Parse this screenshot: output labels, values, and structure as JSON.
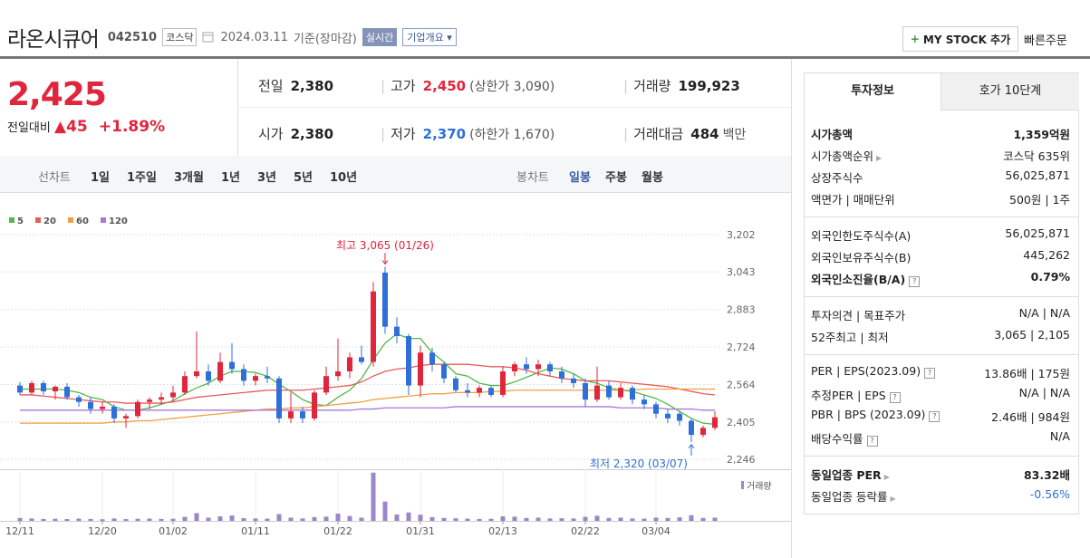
{
  "header": {
    "title": "라온시큐어",
    "code": "042510",
    "market": "코스닥",
    "date": "2024.03.11",
    "basis": "기준(장마감)",
    "realtime": "실시간",
    "overview": "기업개요",
    "my_stock": "MY STOCK 추가",
    "quick_order": "빠른주문"
  },
  "price": {
    "current": "2,425",
    "change_label": "전일대비",
    "change": "45",
    "rate": "+1.89%"
  },
  "quotes": [
    {
      "label": "전일",
      "value": "2,380"
    },
    {
      "label": "고가",
      "value": "2,450",
      "extra": "(상한가 3,090)"
    },
    {
      "label": "거래량",
      "value": "199,923"
    },
    {
      "label": "시가",
      "value": "2,380"
    },
    {
      "label": "저가",
      "value": "2,370",
      "extra": "(하한가 1,670)"
    },
    {
      "label": "거래대금",
      "value": "484",
      "extra": "백만"
    }
  ],
  "periods": {
    "line_label": "선차트",
    "line_items": [
      "1일",
      "1주일",
      "3개월",
      "1년",
      "3년",
      "5년",
      "10년"
    ],
    "candle_label": "봉차트",
    "candle_items": [
      "일봉",
      "주봉",
      "월봉"
    ]
  },
  "chart_data": {
    "type": "candlestick",
    "categories": [
      "12/11",
      null,
      null,
      null,
      null,
      null,
      null,
      "12/20",
      null,
      null,
      null,
      null,
      null,
      "01/02",
      null,
      null,
      null,
      null,
      null,
      null,
      "01/11",
      null,
      null,
      null,
      null,
      null,
      null,
      "01/22",
      null,
      null,
      null,
      null,
      null,
      null,
      "01/31",
      null,
      null,
      null,
      null,
      null,
      null,
      "02/13",
      null,
      null,
      null,
      null,
      null,
      null,
      "02/22",
      null,
      null,
      null,
      null,
      null,
      "03/04",
      null,
      null,
      null,
      null,
      null
    ],
    "open": [
      2560,
      2530,
      2570,
      2535,
      2555,
      2510,
      2490,
      2460,
      2470,
      2420,
      2430,
      2490,
      2500,
      2510,
      2530,
      2600,
      2620,
      2580,
      2660,
      2630,
      2580,
      2600,
      2590,
      2420,
      2450,
      2420,
      2530,
      2600,
      2620,
      2680,
      2660,
      3040,
      2810,
      2770,
      2560,
      2700,
      2650,
      2590,
      2540,
      2530,
      2550,
      2520,
      2620,
      2650,
      2630,
      2650,
      2620,
      2590,
      2570,
      2500,
      2560,
      2510,
      2550,
      2500,
      2480,
      2440,
      2440,
      2410,
      2350,
      2380
    ],
    "high": [
      2575,
      2580,
      2580,
      2560,
      2570,
      2520,
      2510,
      2490,
      2480,
      2440,
      2500,
      2510,
      2530,
      2560,
      2620,
      2790,
      2650,
      2700,
      2740,
      2650,
      2610,
      2640,
      2600,
      2530,
      2470,
      2540,
      2640,
      2760,
      2700,
      2730,
      3000,
      3065,
      2850,
      2780,
      2730,
      2720,
      2660,
      2600,
      2570,
      2560,
      2560,
      2640,
      2660,
      2680,
      2670,
      2660,
      2640,
      2610,
      2590,
      2640,
      2580,
      2570,
      2560,
      2520,
      2490,
      2460,
      2450,
      2420,
      2390,
      2450
    ],
    "low": [
      2520,
      2520,
      2520,
      2500,
      2500,
      2470,
      2440,
      2440,
      2400,
      2380,
      2420,
      2460,
      2480,
      2490,
      2520,
      2590,
      2560,
      2570,
      2610,
      2560,
      2560,
      2570,
      2400,
      2400,
      2400,
      2410,
      2520,
      2580,
      2590,
      2650,
      2640,
      2780,
      2740,
      2520,
      2510,
      2620,
      2570,
      2530,
      2510,
      2510,
      2510,
      2510,
      2600,
      2610,
      2600,
      2600,
      2570,
      2550,
      2470,
      2490,
      2500,
      2500,
      2480,
      2460,
      2420,
      2400,
      2390,
      2320,
      2340,
      2370
    ],
    "close": [
      2530,
      2570,
      2535,
      2555,
      2510,
      2490,
      2460,
      2470,
      2420,
      2430,
      2490,
      2500,
      2510,
      2530,
      2600,
      2620,
      2580,
      2660,
      2630,
      2580,
      2600,
      2590,
      2420,
      2450,
      2420,
      2530,
      2600,
      2620,
      2680,
      2660,
      2960,
      2810,
      2770,
      2560,
      2700,
      2650,
      2590,
      2540,
      2530,
      2550,
      2520,
      2620,
      2650,
      2630,
      2650,
      2620,
      2590,
      2570,
      2500,
      2560,
      2510,
      2550,
      2500,
      2480,
      2440,
      2420,
      2410,
      2350,
      2380,
      2425
    ],
    "up_color": "#e0263c",
    "down_color": "#2f6fd8",
    "series": [
      {
        "name": "5",
        "color": "#52b848",
        "values": [
          2545,
          2545,
          2545,
          2545,
          2540,
          2530,
          2510,
          2500,
          2470,
          2455,
          2455,
          2465,
          2480,
          2495,
          2525,
          2550,
          2570,
          2600,
          2620,
          2620,
          2615,
          2600,
          2565,
          2535,
          2500,
          2480,
          2475,
          2510,
          2540,
          2590,
          2670,
          2740,
          2780,
          2760,
          2760,
          2700,
          2660,
          2610,
          2600,
          2570,
          2560,
          2560,
          2575,
          2595,
          2615,
          2635,
          2630,
          2610,
          2580,
          2570,
          2550,
          2540,
          2535,
          2520,
          2505,
          2480,
          2450,
          2420,
          2400,
          2395
        ]
      },
      {
        "name": "20",
        "color": "#e85a5a",
        "values": [
          2520,
          2520,
          2515,
          2510,
          2505,
          2500,
          2495,
          2490,
          2490,
          2485,
          2485,
          2485,
          2485,
          2490,
          2500,
          2510,
          2515,
          2520,
          2525,
          2530,
          2535,
          2540,
          2540,
          2540,
          2540,
          2545,
          2550,
          2555,
          2560,
          2575,
          2600,
          2620,
          2630,
          2635,
          2645,
          2650,
          2650,
          2650,
          2650,
          2645,
          2640,
          2640,
          2635,
          2625,
          2610,
          2600,
          2590,
          2585,
          2580,
          2580,
          2580,
          2575,
          2570,
          2565,
          2560,
          2555,
          2545,
          2535,
          2525,
          2520
        ]
      },
      {
        "name": "60",
        "color": "#f0a040",
        "values": [
          2400,
          2400,
          2400,
          2400,
          2400,
          2400,
          2400,
          2400,
          2405,
          2405,
          2410,
          2410,
          2415,
          2420,
          2425,
          2430,
          2435,
          2440,
          2445,
          2450,
          2455,
          2460,
          2460,
          2465,
          2465,
          2470,
          2475,
          2480,
          2485,
          2490,
          2500,
          2505,
          2510,
          2515,
          2520,
          2525,
          2525,
          2530,
          2530,
          2530,
          2535,
          2535,
          2540,
          2540,
          2540,
          2540,
          2540,
          2540,
          2540,
          2540,
          2540,
          2540,
          2540,
          2545,
          2545,
          2545,
          2545,
          2545,
          2545,
          2545
        ]
      },
      {
        "name": "120",
        "color": "#a678d8",
        "values": [
          2455,
          2455,
          2455,
          2455,
          2455,
          2455,
          2455,
          2455,
          2455,
          2455,
          2455,
          2455,
          2455,
          2455,
          2455,
          2455,
          2455,
          2455,
          2455,
          2455,
          2455,
          2455,
          2455,
          2455,
          2455,
          2455,
          2455,
          2455,
          2455,
          2460,
          2460,
          2465,
          2465,
          2465,
          2465,
          2465,
          2465,
          2470,
          2470,
          2470,
          2470,
          2470,
          2470,
          2470,
          2470,
          2470,
          2470,
          2470,
          2470,
          2470,
          2470,
          2465,
          2465,
          2465,
          2465,
          2460,
          2460,
          2460,
          2455,
          2455
        ]
      }
    ],
    "ylim": [
      2204,
      3244
    ],
    "yticks": [
      {
        "value": 3202,
        "label": "3,202"
      },
      {
        "value": 3043,
        "label": "3,043"
      },
      {
        "value": 2883,
        "label": "2,883"
      },
      {
        "value": 2724,
        "label": "2,724"
      },
      {
        "value": 2564,
        "label": "2,564"
      },
      {
        "value": 2405,
        "label": "2,405"
      },
      {
        "value": 2246,
        "label": "2,246"
      }
    ],
    "grid": true,
    "volume_label": "거래량",
    "volume_color": "#9a86c8",
    "volume_ylim": [
      0,
      3100000
    ],
    "volume": [
      180000,
      150000,
      120000,
      130000,
      110000,
      140000,
      120000,
      100000,
      150000,
      110000,
      130000,
      140000,
      120000,
      130000,
      250000,
      480000,
      200000,
      280000,
      330000,
      170000,
      150000,
      140000,
      420000,
      200000,
      150000,
      230000,
      260000,
      450000,
      300000,
      200000,
      3000000,
      1200000,
      400000,
      520000,
      380000,
      230000,
      180000,
      160000,
      140000,
      120000,
      130000,
      280000,
      260000,
      180000,
      200000,
      150000,
      160000,
      150000,
      250000,
      320000,
      180000,
      200000,
      150000,
      140000,
      200000,
      180000,
      220000,
      350000,
      180000,
      199923
    ],
    "annotations": {
      "high": "최고 3,065 (01/26)",
      "low": "최저 2,320 (03/07)"
    }
  },
  "side": {
    "tabs": [
      "투자정보",
      "호가 10단계"
    ],
    "sections": [
      [
        {
          "label": "시가총액",
          "value": "1,359억원",
          "bold": true
        },
        {
          "label": "시가총액순위",
          "value": "코스닥 635위",
          "arrow": true
        },
        {
          "label": "상장주식수",
          "value": "56,025,871"
        },
        {
          "label": "액면가 | 매매단위",
          "value": "500원 | 1주"
        }
      ],
      [
        {
          "label": "외국인한도주식수(A)",
          "value": "56,025,871"
        },
        {
          "label": "외국인보유주식수(B)",
          "value": "445,262"
        },
        {
          "label": "외국인소진율(B/A)",
          "value": "0.79%",
          "bold": true,
          "help": true
        }
      ],
      [
        {
          "label": "투자의견 | 목표주가",
          "value": "N/A | N/A"
        },
        {
          "label": "52주최고 | 최저",
          "value": "3,065 | 2,105"
        }
      ],
      [
        {
          "label": "PER | EPS(2023.09)",
          "value": "13.86배 | 175원",
          "help": true
        },
        {
          "label": "추정PER | EPS",
          "value": "N/A | N/A",
          "help": true
        },
        {
          "label": "PBR | BPS (2023.09)",
          "value": "2.46배 | 984원",
          "help": true
        },
        {
          "label": "배당수익률",
          "value": "N/A",
          "help": true
        }
      ],
      [
        {
          "label": "동일업종 PER",
          "value": "83.32배",
          "bold": true,
          "arrow": true
        },
        {
          "label": "동일업종 등락률",
          "value": "-0.56%",
          "arrow": true,
          "blue": true
        }
      ]
    ]
  }
}
